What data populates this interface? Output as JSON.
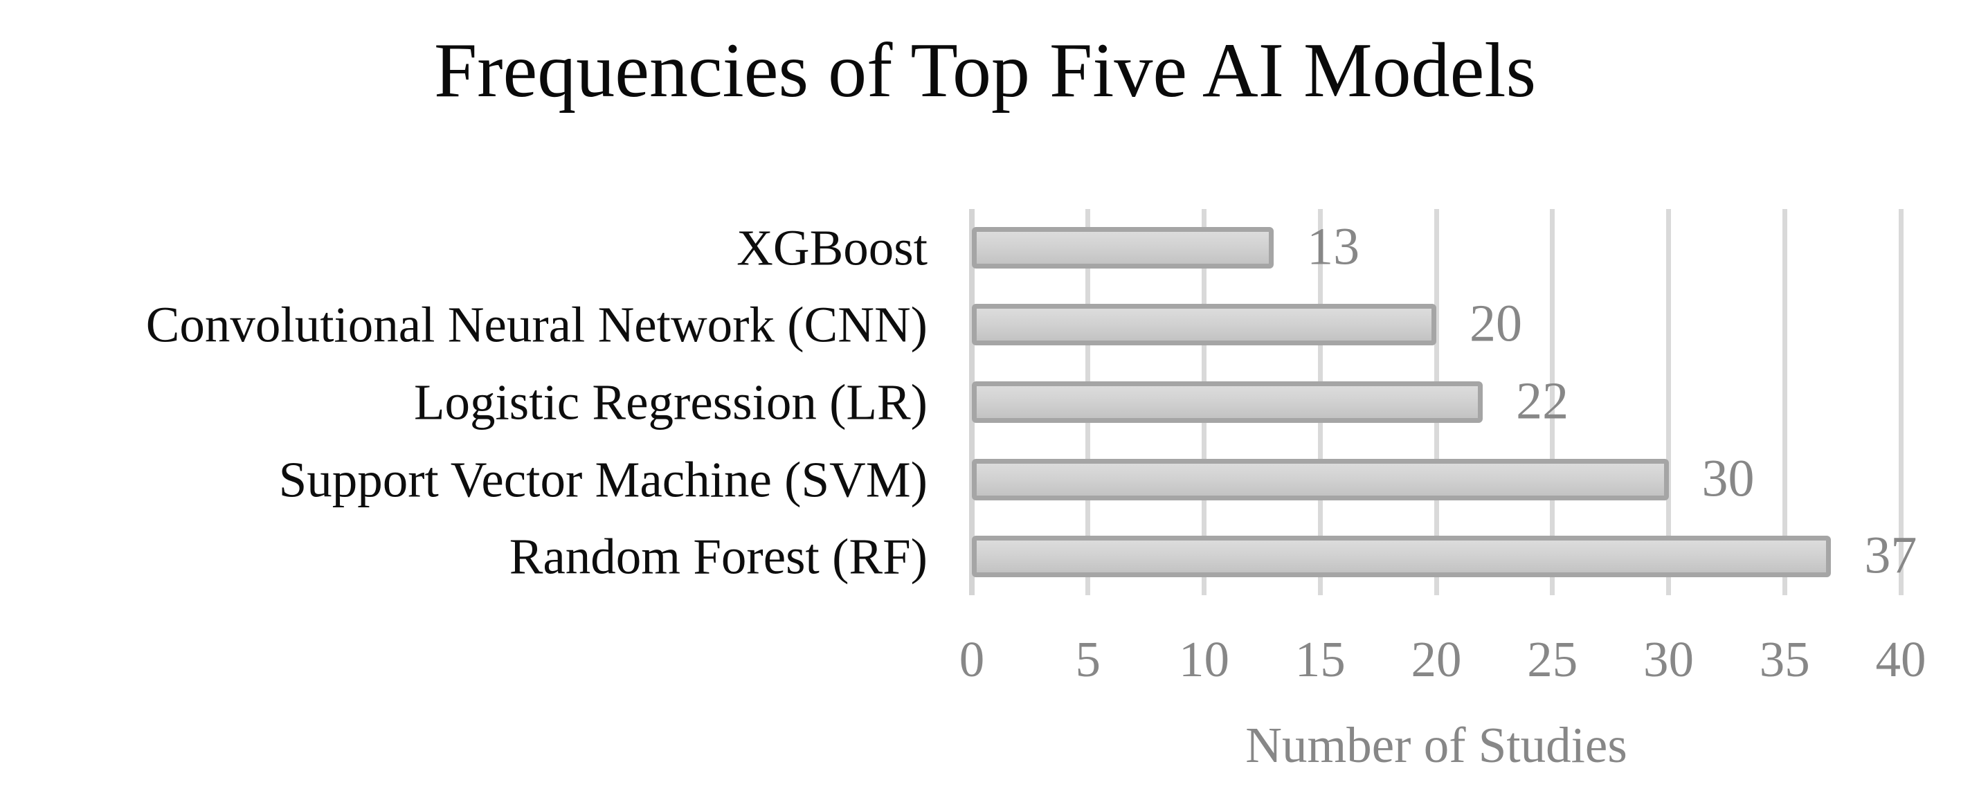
{
  "chart_data": {
    "type": "bar",
    "orientation": "horizontal",
    "title": "Frequencies of Top Five AI Models",
    "categories": [
      "XGBoost",
      "Convolutional Neural Network (CNN)",
      "Logistic Regression (LR)",
      "Support Vector Machine (SVM)",
      "Random Forest (RF)"
    ],
    "values": [
      13,
      20,
      22,
      30,
      37
    ],
    "xlabel": "Number of Studies",
    "ylabel": "",
    "xlim": [
      0,
      40
    ],
    "xticks": [
      0,
      5,
      10,
      15,
      20,
      25,
      30,
      35,
      40
    ],
    "grid": "vertical-only",
    "legend": "none",
    "colors": {
      "bar_fill_top": "#dcdcdc",
      "bar_fill_bottom": "#c3c3c3",
      "bar_border": "#a5a5a5",
      "gridline": "#d9d9d9",
      "title_text": "#0a0a0a",
      "category_text": "#0d0d0d",
      "muted_text": "#878787",
      "background": "#ffffff"
    }
  }
}
